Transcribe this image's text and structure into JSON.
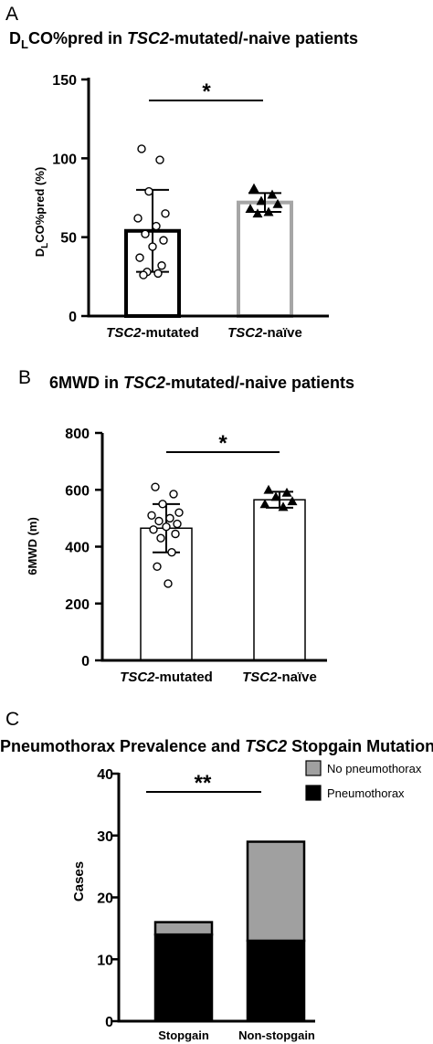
{
  "chart_data": [
    {
      "panel": "A",
      "type": "bar",
      "title": {
        "pre": "D",
        "sub": "L",
        "mid": "CO%pred in ",
        "ital": "TSC2",
        "post": "-mutated/-naive patients"
      },
      "ylabel": {
        "pre": "D",
        "sub": "L",
        "post": "CO%pred (%)"
      },
      "ylim": [
        0,
        150
      ],
      "yticks": [
        0,
        50,
        100,
        150
      ],
      "categories": [
        {
          "ital": "TSC2",
          "rest": "-mutated"
        },
        {
          "ital": "TSC2",
          "rest": "-naïve"
        }
      ],
      "values": [
        54,
        72
      ],
      "error": [
        26,
        6
      ],
      "points": [
        [
          106,
          99,
          79,
          65,
          62,
          57,
          52,
          48,
          44,
          37,
          32,
          28,
          27,
          26
        ],
        [
          81,
          77,
          73,
          71,
          68,
          66,
          65
        ]
      ],
      "significance": "*"
    },
    {
      "panel": "B",
      "type": "bar",
      "title": {
        "pre": "6MWD in ",
        "ital": "TSC2",
        "post": "-mutated/-naive patients"
      },
      "ylabel": "6MWD (m)",
      "ylim": [
        0,
        800
      ],
      "yticks": [
        0,
        200,
        400,
        600,
        800
      ],
      "categories": [
        {
          "ital": "TSC2",
          "rest": "-mutated"
        },
        {
          "ital": "TSC2",
          "rest": "-naïve"
        }
      ],
      "values": [
        465,
        565
      ],
      "error": [
        85,
        28
      ],
      "points": [
        [
          610,
          585,
          550,
          520,
          510,
          500,
          490,
          480,
          470,
          460,
          445,
          430,
          380,
          330,
          270
        ],
        [
          600,
          590,
          575,
          560,
          550,
          540
        ]
      ],
      "significance": "*"
    },
    {
      "panel": "C",
      "type": "bar",
      "stacked": true,
      "title": {
        "pre": "Pneumothorax Prevalence and ",
        "ital": "TSC2",
        "post": " Stopgain Mutation"
      },
      "ylabel": "Cases",
      "ylim": [
        0,
        40
      ],
      "yticks": [
        0,
        10,
        20,
        30,
        40
      ],
      "categories": [
        "Stopgain",
        "Non-stopgain"
      ],
      "series": [
        {
          "name": "Pneumothorax",
          "values": [
            14,
            13
          ],
          "color": "#000000"
        },
        {
          "name": "No pneumothorax",
          "values": [
            2,
            16
          ],
          "color": "#a0a0a0"
        }
      ],
      "legend_order": [
        "No pneumothorax",
        "Pneumothorax"
      ],
      "legend_position": "top-right",
      "significance": "**"
    }
  ]
}
